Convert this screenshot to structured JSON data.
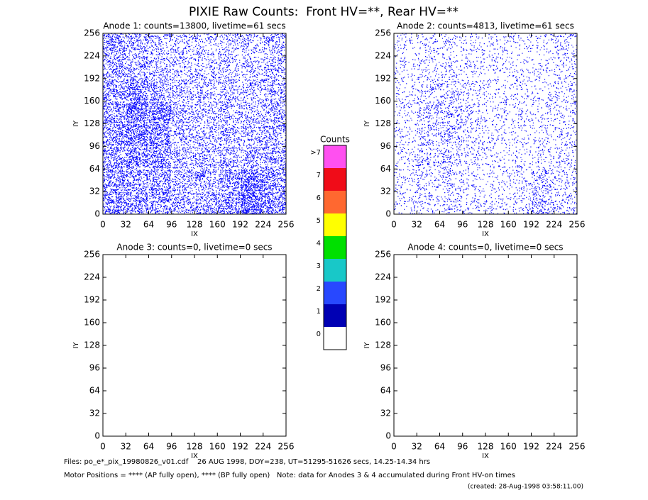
{
  "title": "PIXIE Raw Counts:  Front HV=**, Rear HV=**",
  "chart_data": [
    {
      "type": "heatmap",
      "title": "Anode 1: counts=13800, livetime=61 secs",
      "x_label": "IX",
      "y_label": "IY",
      "color": "#0000ff",
      "xlim": [
        0,
        256
      ],
      "ylim": [
        0,
        256
      ],
      "xticks": [
        0,
        32,
        64,
        96,
        128,
        160,
        192,
        224,
        256
      ],
      "yticks": [
        0,
        32,
        64,
        96,
        128,
        160,
        192,
        224,
        256
      ],
      "values": [
        [
          300,
          280,
          250,
          200,
          230,
          280,
          450,
          300
        ],
        [
          280,
          250,
          260,
          180,
          200,
          250,
          420,
          280
        ],
        [
          260,
          320,
          300,
          170,
          170,
          190,
          200,
          220
        ],
        [
          280,
          380,
          330,
          160,
          160,
          170,
          160,
          200
        ],
        [
          260,
          400,
          360,
          180,
          150,
          160,
          150,
          190
        ],
        [
          250,
          330,
          200,
          150,
          140,
          150,
          140,
          180
        ],
        [
          230,
          200,
          150,
          130,
          130,
          130,
          120,
          170
        ],
        [
          250,
          180,
          140,
          120,
          120,
          120,
          120,
          170
        ]
      ]
    },
    {
      "type": "heatmap",
      "title": "Anode 2: counts=4813, livetime=61 secs",
      "x_label": "IX",
      "y_label": "IY",
      "color": "#0000ff",
      "xlim": [
        0,
        256
      ],
      "ylim": [
        0,
        256
      ],
      "xticks": [
        0,
        32,
        64,
        96,
        128,
        160,
        192,
        224,
        256
      ],
      "yticks": [
        0,
        32,
        64,
        96,
        128,
        160,
        192,
        224,
        256
      ],
      "values": [
        [
          60,
          70,
          80,
          60,
          60,
          70,
          150,
          90
        ],
        [
          60,
          80,
          90,
          60,
          55,
          65,
          130,
          80
        ],
        [
          55,
          100,
          110,
          70,
          55,
          55,
          60,
          70
        ],
        [
          55,
          110,
          120,
          75,
          55,
          55,
          55,
          70
        ],
        [
          55,
          120,
          120,
          80,
          60,
          55,
          55,
          70
        ],
        [
          50,
          90,
          100,
          70,
          55,
          55,
          55,
          70
        ],
        [
          50,
          70,
          70,
          60,
          50,
          50,
          50,
          70
        ],
        [
          50,
          60,
          60,
          55,
          50,
          50,
          50,
          80
        ]
      ]
    },
    {
      "type": "heatmap",
      "title": "Anode 3: counts=0, livetime=0 secs",
      "x_label": "IX",
      "y_label": "IY",
      "xlim": [
        0,
        256
      ],
      "ylim": [
        0,
        256
      ],
      "xticks": [
        0,
        32,
        64,
        96,
        128,
        160,
        192,
        224,
        256
      ],
      "yticks": [
        0,
        32,
        64,
        96,
        128,
        160,
        192,
        224,
        256
      ]
    },
    {
      "type": "heatmap",
      "title": "Anode 4: counts=0, livetime=0 secs",
      "x_label": "IX",
      "y_label": "IY",
      "xlim": [
        0,
        256
      ],
      "ylim": [
        0,
        256
      ],
      "xticks": [
        0,
        32,
        64,
        96,
        128,
        160,
        192,
        224,
        256
      ],
      "yticks": [
        0,
        32,
        64,
        96,
        128,
        160,
        192,
        224,
        256
      ]
    },
    {
      "type": "colorbar",
      "title": "Counts",
      "categories": [
        "0",
        "1",
        "2",
        "3",
        "4",
        "5",
        "6",
        "7",
        ">7"
      ],
      "colors": [
        "#ffffff",
        "#0000b4",
        "#2848ff",
        "#18c8c8",
        "#00e000",
        "#ffff00",
        "#ff6830",
        "#f00c18",
        "#ff50f0"
      ]
    }
  ],
  "footer": [
    "Files: po_e*_pix_19980826_v01.cdf    26 AUG 1998, DOY=238, UT=51295-51626 secs, 14.25-14.34 hrs",
    "Motor Positions = **** (AP fully open), **** (BP fully open)   Note: data for Anodes 3 & 4 accumulated during Front HV-on times",
    "(created: 28-Aug-1998 03:58:11.00)"
  ]
}
